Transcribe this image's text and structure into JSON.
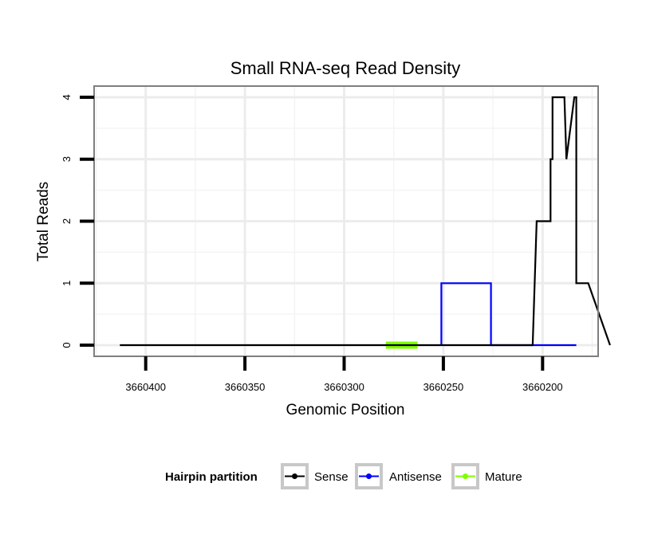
{
  "chart_data": {
    "type": "line",
    "title": "Small RNA-seq Read Density",
    "xlabel": "Genomic Position",
    "ylabel": "Total Reads",
    "x_reversed": true,
    "xlim": [
      3660426,
      3660172
    ],
    "ylim": [
      -0.18,
      4.18
    ],
    "x_ticks": [
      3660400,
      3660350,
      3660300,
      3660250,
      3660200
    ],
    "x_tick_labels": [
      "3660400",
      "3660350",
      "3660300",
      "3660250",
      "3660200"
    ],
    "y_ticks": [
      0,
      1,
      2,
      3,
      4
    ],
    "y_tick_labels": [
      "0",
      "1",
      "2",
      "3",
      "4"
    ],
    "grid": true,
    "legend": {
      "title": "Hairpin partition",
      "position": "bottom",
      "entries": [
        "Sense",
        "Antisense",
        "Mature"
      ]
    },
    "series": [
      {
        "name": "Sense",
        "color": "#000000",
        "x": [
          3660413,
          3660205,
          3660203,
          3660196,
          3660196,
          3660195,
          3660195,
          3660189,
          3660188,
          3660188,
          3660184,
          3660183,
          3660183,
          3660177,
          3660166
        ],
        "y": [
          0,
          0,
          2,
          2,
          3,
          3,
          4,
          4,
          3,
          3,
          4,
          4,
          1,
          1,
          0
        ]
      },
      {
        "name": "Antisense",
        "color": "#0000ff",
        "x": [
          3660251,
          3660251,
          3660226,
          3660226,
          3660205,
          3660183
        ],
        "y": [
          0,
          1,
          1,
          0,
          0,
          0
        ]
      },
      {
        "name": "Mature",
        "color": "#7fff00",
        "x": [
          3660279,
          3660263
        ],
        "y": [
          0,
          0
        ]
      }
    ]
  }
}
